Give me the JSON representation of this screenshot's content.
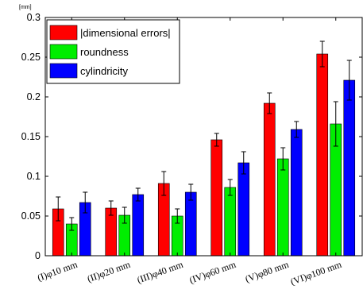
{
  "chart_data": {
    "type": "bar",
    "ylabel": "[mm]",
    "ylim": [
      0,
      0.3
    ],
    "yticks": [
      0,
      0.05,
      0.1,
      0.15,
      0.2,
      0.25,
      0.3
    ],
    "ytick_labels": [
      "0",
      "0.05",
      "0.1",
      "0.15",
      "0.2",
      "0.25",
      "0.3"
    ],
    "categories": [
      "(I)φ10 mm",
      "(II)φ20 mm",
      "(III)φ40 mm",
      "(IV)φ60 mm",
      "(V)φ80 mm",
      "(VI)φ100 mm"
    ],
    "series": [
      {
        "name": "|dimensional errors|",
        "color": "#ff0000",
        "values": [
          0.059,
          0.06,
          0.091,
          0.146,
          0.192,
          0.254
        ],
        "errors": [
          0.015,
          0.009,
          0.015,
          0.008,
          0.013,
          0.016
        ]
      },
      {
        "name": "roundness",
        "color": "#00ee00",
        "values": [
          0.04,
          0.051,
          0.05,
          0.086,
          0.122,
          0.166
        ],
        "errors": [
          0.008,
          0.01,
          0.009,
          0.01,
          0.014,
          0.028
        ]
      },
      {
        "name": "cylindricity",
        "color": "#0000ff",
        "values": [
          0.067,
          0.077,
          0.08,
          0.117,
          0.159,
          0.221
        ],
        "errors": [
          0.013,
          0.008,
          0.01,
          0.014,
          0.01,
          0.025
        ]
      }
    ],
    "legend": {
      "position": "top-left"
    },
    "grid": false
  }
}
